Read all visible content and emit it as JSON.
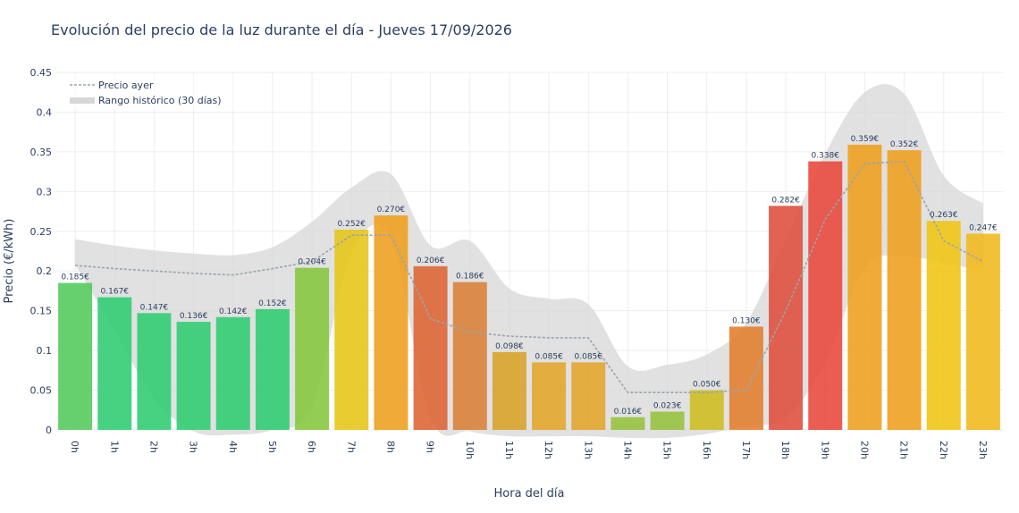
{
  "chart_data": {
    "type": "bar",
    "title": "Evolución del precio de la luz durante el día - Jueves 17/09/2026",
    "xlabel": "Hora del día",
    "ylabel": "Precio (€/kWh)",
    "ylim": [
      0,
      0.45
    ],
    "yticks": [
      "0",
      "0.05",
      "0.1",
      "0.15",
      "0.2",
      "0.25",
      "0.3",
      "0.35",
      "0.4",
      "0.45"
    ],
    "ytick_values": [
      0,
      0.05,
      0.1,
      0.15,
      0.2,
      0.25,
      0.3,
      0.35,
      0.4,
      0.45
    ],
    "categories": [
      "0h",
      "1h",
      "2h",
      "3h",
      "4h",
      "5h",
      "6h",
      "7h",
      "8h",
      "9h",
      "10h",
      "11h",
      "12h",
      "13h",
      "14h",
      "15h",
      "16h",
      "17h",
      "18h",
      "19h",
      "20h",
      "21h",
      "22h",
      "23h"
    ],
    "series": [
      {
        "type": "bar",
        "values": [
          0.185,
          0.167,
          0.147,
          0.136,
          0.142,
          0.152,
          0.204,
          0.252,
          0.27,
          0.206,
          0.186,
          0.098,
          0.085,
          0.085,
          0.016,
          0.023,
          0.05,
          0.13,
          0.282,
          0.338,
          0.359,
          0.352,
          0.263,
          0.247
        ],
        "labels": [
          "0.185€",
          "0.167€",
          "0.147€",
          "0.136€",
          "0.142€",
          "0.152€",
          "0.204€",
          "0.252€",
          "0.270€",
          "0.206€",
          "0.186€",
          "0.098€",
          "0.085€",
          "0.085€",
          "0.016€",
          "0.023€",
          "0.050€",
          "0.130€",
          "0.282€",
          "0.338€",
          "0.359€",
          "0.352€",
          "0.263€",
          "0.247€"
        ],
        "colors": [
          "#52c95a",
          "#2ecc71",
          "#2ecc71",
          "#2ecc71",
          "#2ecc71",
          "#2ecc71",
          "#84c63b",
          "#e6c416",
          "#ee9e1b",
          "#dd6332",
          "#da7e35",
          "#d8a228",
          "#e3a528",
          "#e3a528",
          "#95c23c",
          "#95c23c",
          "#cdbc1f",
          "#e17d2c",
          "#de4d3b",
          "#e8453a",
          "#ee9e1b",
          "#ee9e1b",
          "#f0c40f",
          "#f0b81a"
        ]
      },
      {
        "name": "Precio ayer",
        "type": "line",
        "values": [
          0.207,
          0.203,
          0.2,
          0.197,
          0.195,
          0.203,
          0.212,
          0.245,
          0.245,
          0.14,
          0.123,
          0.118,
          0.116,
          0.116,
          0.047,
          0.047,
          0.047,
          0.05,
          0.15,
          0.265,
          0.335,
          0.338,
          0.238,
          0.212
        ],
        "color": "#9aa5ac"
      },
      {
        "name": "Rango histórico (30 días)",
        "type": "band",
        "upper": [
          0.24,
          0.232,
          0.226,
          0.222,
          0.22,
          0.23,
          0.262,
          0.305,
          0.322,
          0.232,
          0.238,
          0.178,
          0.165,
          0.158,
          0.08,
          0.082,
          0.095,
          0.135,
          0.24,
          0.348,
          0.425,
          0.423,
          0.32,
          0.285
        ],
        "lower": [
          0.208,
          0.125,
          0.04,
          -0.002,
          -0.006,
          0.0,
          0.03,
          0.222,
          0.24,
          0.015,
          -0.002,
          -0.008,
          -0.008,
          -0.008,
          -0.01,
          -0.01,
          -0.005,
          0.005,
          0.015,
          0.085,
          0.205,
          0.218,
          0.21,
          0.2
        ],
        "color": "#d7d7d7"
      }
    ],
    "legend": {
      "placement": "top-left",
      "entries": [
        "Precio ayer",
        "Rango histórico (30 días)"
      ]
    },
    "grid": true
  }
}
